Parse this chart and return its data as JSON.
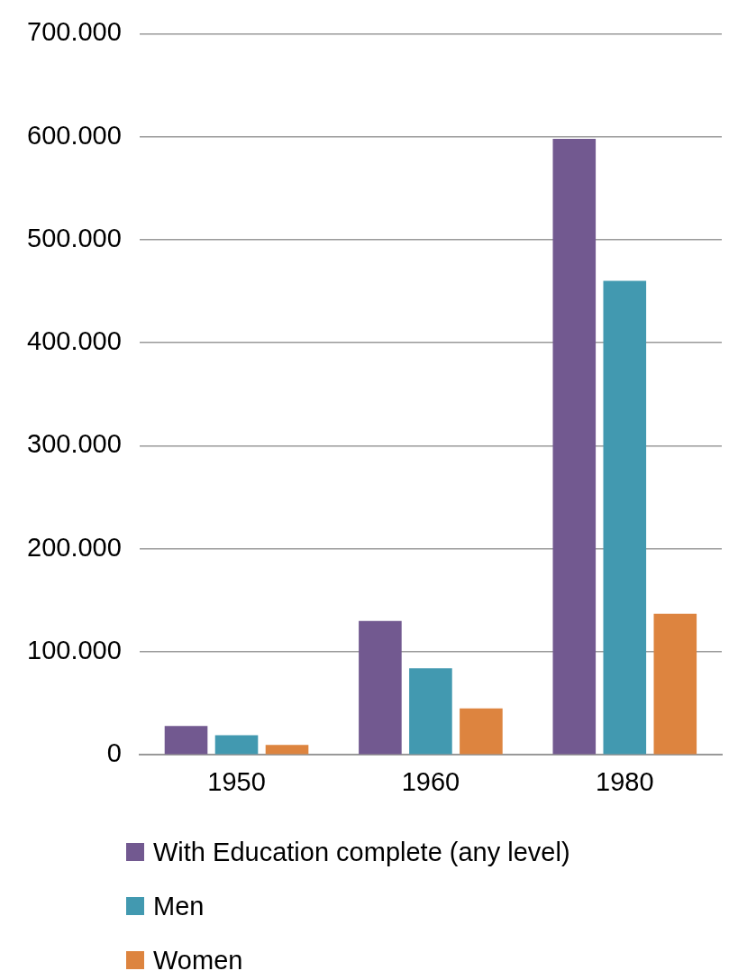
{
  "chart_data": {
    "type": "bar",
    "categories": [
      "1950",
      "1960",
      "1980"
    ],
    "series": [
      {
        "name": "With Education complete (any level)",
        "color": "#725990",
        "values": [
          28000,
          130000,
          598000
        ]
      },
      {
        "name": "Men",
        "color": "#4299b0",
        "values": [
          19000,
          84000,
          460000
        ]
      },
      {
        "name": "Women",
        "color": "#dd843f",
        "values": [
          9500,
          45000,
          137000
        ]
      }
    ],
    "ylim": [
      0,
      700000
    ],
    "yticks": [
      0,
      {
        "value": 100000,
        "label": "100.000"
      },
      {
        "value": 200000,
        "label": "200.000"
      },
      {
        "value": 300000,
        "label": "300.000"
      },
      {
        "value": 400000,
        "label": "400.000"
      },
      {
        "value": 500000,
        "label": "500.000"
      },
      {
        "value": 600000,
        "label": "600.000"
      },
      {
        "value": 700000,
        "label": "700.000"
      }
    ],
    "grid": "y",
    "legend": "bottom"
  }
}
